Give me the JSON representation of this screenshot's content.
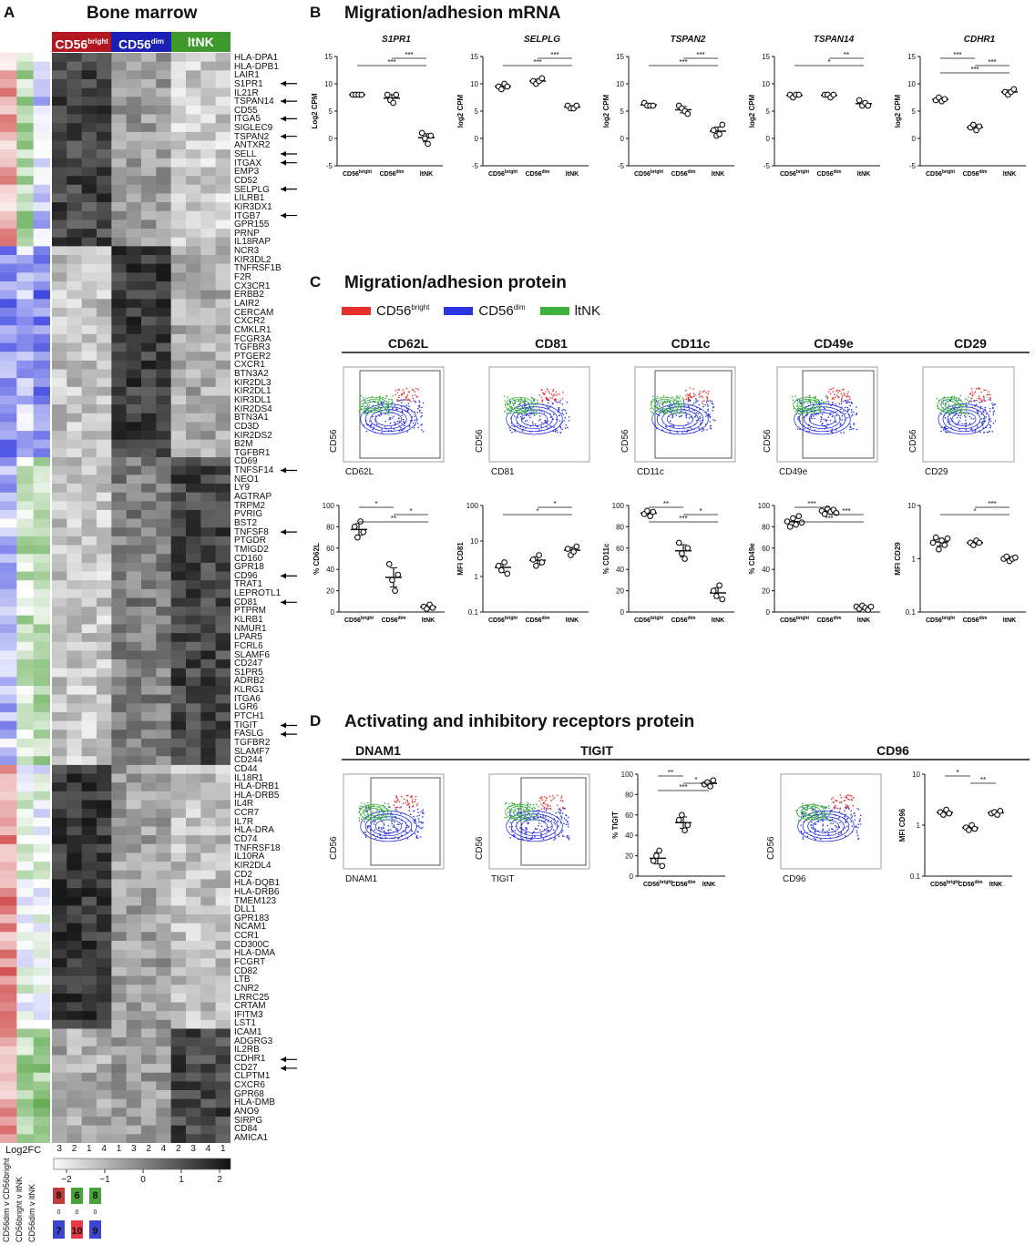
{
  "panel_a": {
    "letter": "A",
    "title": "Bone marrow",
    "groups": [
      {
        "name": "CD56",
        "sup": "bright",
        "color": "#b3161e"
      },
      {
        "name": "CD56",
        "sup": "dim",
        "color": "#1a1fb8"
      },
      {
        "name": "ltNK",
        "sup": "",
        "color": "#3e9a2b"
      }
    ],
    "genes": [
      "HLA-DPA1",
      "HLA-DPB1",
      "LAIR1",
      "S1PR1",
      "IL21R",
      "TSPAN14",
      "CD55",
      "ITGA5",
      "SIGLEC9",
      "TSPAN2",
      "ANTXR2",
      "SELL",
      "ITGAX",
      "EMP3",
      "CD52",
      "SELPLG",
      "LILRB1",
      "KIR3DX1",
      "ITGB7",
      "GPR155",
      "PRNP",
      "IL18RAP",
      "NCR3",
      "KIR3DL2",
      "TNFRSF1B",
      "F2R",
      "CX3CR1",
      "ERBB2",
      "LAIR2",
      "CERCAM",
      "CXCR2",
      "CMKLR1",
      "FCGR3A",
      "TGFBR3",
      "PTGER2",
      "CXCR1",
      "BTN3A2",
      "KIR2DL3",
      "KIR2DL1",
      "KIR3DL1",
      "KIR2DS4",
      "BTN3A1",
      "CD3D",
      "KIR2DS2",
      "B2M",
      "TGFBR1",
      "CD69",
      "TNFSF14",
      "NEO1",
      "LY9",
      "AGTRAP",
      "TRPM2",
      "PVRIG",
      "BST2",
      "TNFSF8",
      "PTGDR",
      "TMIGD2",
      "CD160",
      "GPR18",
      "CD96",
      "TRAT1",
      "LEPROTL1",
      "CD81",
      "PTPRM",
      "KLRB1",
      "NMUR1",
      "LPAR5",
      "FCRL6",
      "SLAMF6",
      "CD247",
      "S1PR5",
      "ADRB2",
      "KLRG1",
      "ITGA6",
      "LGR6",
      "PTCH1",
      "TIGIT",
      "FASLG",
      "TGFBR2",
      "SLAMF7",
      "CD244",
      "CD44",
      "IL18R1",
      "HLA-DRB1",
      "HLA-DRB5",
      "IL4R",
      "CCR7",
      "IL7R",
      "HLA-DRA",
      "CD74",
      "TNFRSF18",
      "IL10RA",
      "KIR2DL4",
      "CD2",
      "HLA-DQB1",
      "HLA-DRB6",
      "TMEM123",
      "DLL1",
      "GPR183",
      "NCAM1",
      "CCR1",
      "CD300C",
      "HLA-DMA",
      "FCGRT",
      "CD82",
      "LTB",
      "CNR2",
      "LRRC25",
      "CRTAM",
      "IFITM3",
      "LST1",
      "ICAM1",
      "ADGRG3",
      "IL2RB",
      "CDHR1",
      "CD27",
      "CLPTM1",
      "CXCR6",
      "GPR68",
      "HLA-DMB",
      "ANO9",
      "SIRPG",
      "CD84",
      "AMICA1"
    ],
    "arrow_genes": [
      "S1PR1",
      "TSPAN14",
      "ITGA5",
      "TSPAN2",
      "SELL",
      "ITGAX",
      "SELPLG",
      "ITGB7",
      "TNFSF14",
      "TNFSF8",
      "CD96",
      "CD81",
      "TIGIT",
      "FASLG",
      "CDHR1",
      "CD27"
    ],
    "donors": [
      "3",
      "2",
      "1",
      "4",
      "1",
      "3",
      "2",
      "4",
      "2",
      "3",
      "4",
      "1"
    ],
    "log2fc_label": "Log2FC",
    "comparisons": [
      "CD56dim v CD56bright",
      "CD56bright v ltNK",
      "CD56dim v ltNK"
    ],
    "scale_ticks": [
      "−2",
      "−1",
      "0",
      "1",
      "2"
    ],
    "fc_top": [
      "8",
      "6",
      "8"
    ],
    "fc_mid": [
      "0",
      "0",
      "0"
    ],
    "fc_bottom": [
      "7",
      "10",
      "9"
    ]
  },
  "panel_b": {
    "letter": "B",
    "title": "Migration/adhesion mRNA",
    "plots": [
      {
        "gene": "S1PR1",
        "ylabel": "Log2 CPM",
        "sig": [
          {
            "a": 1,
            "b": 2,
            "t": "***"
          },
          {
            "a": 0,
            "b": 2,
            "t": "***"
          }
        ],
        "groups": [
          [
            8,
            8,
            8,
            8
          ],
          [
            8,
            7,
            6.5,
            8
          ],
          [
            1,
            0,
            -1,
            0.5
          ]
        ]
      },
      {
        "gene": "SELPLG",
        "ylabel": "log2 CPM",
        "sig": [
          {
            "a": 1,
            "b": 2,
            "t": "***"
          },
          {
            "a": 0,
            "b": 2,
            "t": "***"
          }
        ],
        "groups": [
          [
            9.5,
            9,
            10,
            9.5
          ],
          [
            10.5,
            10,
            10.5,
            11
          ],
          [
            6,
            5.5,
            5.5,
            6
          ]
        ]
      },
      {
        "gene": "TSPAN2",
        "ylabel": "log2 CPM",
        "sig": [
          {
            "a": 1,
            "b": 2,
            "t": "***"
          },
          {
            "a": 0,
            "b": 2,
            "t": "***"
          }
        ],
        "groups": [
          [
            6.5,
            6,
            6,
            6
          ],
          [
            6,
            5.5,
            5,
            4.5
          ],
          [
            1.5,
            0.5,
            0.8,
            2.5
          ]
        ]
      },
      {
        "gene": "TSPAN14",
        "ylabel": "log2 CPM",
        "sig": [
          {
            "a": 1,
            "b": 2,
            "t": "**"
          },
          {
            "a": 0,
            "b": 2,
            "t": "*"
          }
        ],
        "groups": [
          [
            8,
            7.5,
            8,
            8
          ],
          [
            8,
            8,
            7.5,
            8
          ],
          [
            7,
            6,
            6.5,
            6
          ]
        ]
      },
      {
        "gene": "CDHR1",
        "ylabel": "log2 CPM",
        "sig": [
          {
            "a": 0,
            "b": 1,
            "t": "***"
          },
          {
            "a": 1,
            "b": 2,
            "t": "***"
          },
          {
            "a": 0,
            "b": 2,
            "t": "***"
          }
        ],
        "groups": [
          [
            7,
            7.5,
            6.8,
            7.2
          ],
          [
            2,
            2.5,
            1.5,
            2.2
          ],
          [
            8.5,
            8,
            8.5,
            9
          ]
        ]
      }
    ],
    "xcats": [
      "CD56bright",
      "CD56dim",
      "ltNK"
    ],
    "yticks": [
      "15",
      "10",
      "5",
      "0",
      "-5"
    ]
  },
  "panel_c": {
    "letter": "C",
    "title": "Migration/adhesion protein",
    "legend": [
      {
        "label": "CD56",
        "sup": "bright",
        "color": "#e8302b"
      },
      {
        "label": "CD56",
        "sup": "dim",
        "color": "#2a34e0"
      },
      {
        "label": "ltNK",
        "sup": "",
        "color": "#3bb23b"
      }
    ],
    "markers": [
      "CD62L",
      "CD81",
      "CD11c",
      "CD49e",
      "CD29"
    ],
    "y_axis": "CD56",
    "plots": [
      {
        "ylabel": "% CD62L",
        "log": false,
        "yticks": [
          "100",
          "80",
          "60",
          "40",
          "20",
          "0"
        ],
        "groups": [
          [
            80,
            70,
            85,
            75
          ],
          [
            45,
            30,
            20,
            35
          ],
          [
            5,
            3,
            7,
            4
          ]
        ],
        "sig": [
          {
            "a": 0,
            "b": 1,
            "t": "*"
          },
          {
            "a": 1,
            "b": 2,
            "t": "*"
          },
          {
            "a": 0,
            "b": 2,
            "t": "**"
          }
        ]
      },
      {
        "ylabel": "MFI CD81",
        "log": true,
        "yticks": [
          "100",
          "10",
          "1",
          "0.1"
        ],
        "groups": [
          [
            2,
            1.5,
            2.5,
            1.2
          ],
          [
            3,
            2,
            4,
            2.5
          ],
          [
            6,
            4,
            5,
            7
          ]
        ],
        "sig": [
          {
            "a": 1,
            "b": 2,
            "t": "*"
          },
          {
            "a": 0,
            "b": 2,
            "t": "*"
          }
        ]
      },
      {
        "ylabel": "% CD11c",
        "log": false,
        "yticks": [
          "100",
          "80",
          "60",
          "40",
          "20",
          "0"
        ],
        "groups": [
          [
            92,
            95,
            90,
            94
          ],
          [
            65,
            55,
            50,
            60
          ],
          [
            20,
            15,
            25,
            12
          ]
        ],
        "sig": [
          {
            "a": 0,
            "b": 1,
            "t": "**"
          },
          {
            "a": 1,
            "b": 2,
            "t": "*"
          },
          {
            "a": 0,
            "b": 2,
            "t": "***"
          }
        ]
      },
      {
        "ylabel": "% CD49e",
        "log": false,
        "yticks": [
          "100",
          "80",
          "60",
          "40",
          "20",
          "0"
        ],
        "groups": [
          [
            85,
            80,
            88,
            82,
            90,
            84
          ],
          [
            95,
            92,
            97,
            94,
            96,
            93
          ],
          [
            5,
            3,
            6,
            4,
            2,
            5
          ]
        ],
        "sig": [
          {
            "a": 0,
            "b": 1,
            "t": "***"
          },
          {
            "a": 1,
            "b": 2,
            "t": "***"
          },
          {
            "a": 0,
            "b": 2,
            "t": "***"
          }
        ]
      },
      {
        "ylabel": "MFI CD29",
        "log": true,
        "yticks": [
          "10",
          "1",
          "0.1"
        ],
        "groups": [
          [
            2,
            2.5,
            1.5,
            2.2,
            1.8,
            2.4
          ],
          [
            2,
            1.8,
            2.2,
            2
          ],
          [
            1,
            1.1,
            0.9,
            1,
            1.05
          ]
        ],
        "sig": [
          {
            "a": 1,
            "b": 2,
            "t": "***"
          },
          {
            "a": 0,
            "b": 2,
            "t": "*"
          }
        ]
      }
    ]
  },
  "panel_d": {
    "letter": "D",
    "title": "Activating and inhibitory receptors protein",
    "markers": [
      "DNAM1",
      "TIGIT",
      "CD96"
    ],
    "y_axis": "CD56",
    "plots": [
      {
        "ylabel": "% TIGIT",
        "log": false,
        "yticks": [
          "100",
          "80",
          "60",
          "40",
          "20",
          "0"
        ],
        "groups": [
          [
            15,
            20,
            25,
            10
          ],
          [
            55,
            60,
            45,
            50
          ],
          [
            90,
            92,
            88,
            94
          ]
        ],
        "sig": [
          {
            "a": 0,
            "b": 1,
            "t": "**"
          },
          {
            "a": 1,
            "b": 2,
            "t": "*"
          },
          {
            "a": 0,
            "b": 2,
            "t": "***"
          }
        ]
      },
      {
        "ylabel": "MFI CD96",
        "log": true,
        "yticks": [
          "10",
          "1",
          "0.1"
        ],
        "groups": [
          [
            1.8,
            1.6,
            2,
            1.7
          ],
          [
            0.9,
            0.8,
            1,
            0.85
          ],
          [
            1.7,
            1.8,
            1.6,
            1.9
          ]
        ],
        "sig": [
          {
            "a": 0,
            "b": 1,
            "t": "*"
          },
          {
            "a": 1,
            "b": 2,
            "t": "**"
          }
        ]
      }
    ]
  }
}
